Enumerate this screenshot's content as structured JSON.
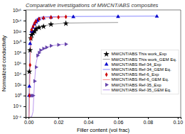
{
  "chart_data": {
    "type": "line",
    "title": "Comparative investigations of MWCNT/ABS composites",
    "x_label": "Filler content (vol frac)",
    "y_label": "Normalized conductivity",
    "log": "y",
    "grid": false,
    "legend": "right",
    "xlim": [
      -0.002,
      0.102
    ],
    "ylim": [
      0.0001,
      1e+16
    ],
    "xticks": [
      {
        "value": 0,
        "label": "0.00"
      },
      {
        "value": 0.02,
        "label": "0.02"
      },
      {
        "value": 0.04,
        "label": "0.04"
      },
      {
        "value": 0.06,
        "label": "0.06"
      },
      {
        "value": 0.08,
        "label": "0.08"
      },
      {
        "value": 0.1,
        "label": "0.10"
      }
    ],
    "yticks": [
      {
        "value": 0.0001,
        "label": "10⁻⁴"
      },
      {
        "value": 0.01,
        "label": "10⁻²"
      },
      {
        "value": 1,
        "label": "10⁰"
      },
      {
        "value": 100,
        "label": "10²"
      },
      {
        "value": 10000.0,
        "label": "10⁴"
      },
      {
        "value": 1000000.0,
        "label": "10⁶"
      },
      {
        "value": 100000000.0,
        "label": "10⁸"
      },
      {
        "value": 10000000000.0,
        "label": "10¹⁰"
      },
      {
        "value": 1000000000000.0,
        "label": "10¹²"
      },
      {
        "value": 100000000000000.0,
        "label": "10¹⁴"
      },
      {
        "value": 1e+16,
        "label": "10¹⁶"
      }
    ],
    "series": [
      {
        "name": "MWCNT/ABS This work_Exp",
        "type": "scatter",
        "marker": "star",
        "color": "#000000",
        "x": [
          0.0005,
          0.001,
          0.0015,
          0.002,
          0.003,
          0.004,
          0.005,
          0.007,
          0.01,
          0.015,
          0.025
        ],
        "values": [
          30000.0,
          300000000.0,
          50000000000.0,
          200000000000.0,
          500000000000.0,
          1000000000000.0,
          3000000000000.0,
          5000000000000.0,
          8000000000000.0,
          20000000000000.0,
          30000000000000.0
        ]
      },
      {
        "name": "MWCNT/ABS This work_GEM Eq.",
        "type": "line",
        "line_style": "solid",
        "color": "#999999",
        "x": [
          0.0002,
          0.0005,
          0.001,
          0.002,
          0.003,
          0.004,
          0.005,
          0.007,
          0.01,
          0.015,
          0.025,
          0.04,
          0.06
        ],
        "values": [
          0.0001,
          1000.0,
          500000000.0,
          200000000000.0,
          600000000000.0,
          1500000000000.0,
          3000000000000.0,
          6000000000000.0,
          10000000000000.0,
          20000000000000.0,
          35000000000000.0,
          40000000000000.0,
          45000000000000.0
        ]
      },
      {
        "name": "MWCNT/ABS Ref-34_Exp",
        "type": "scatter",
        "marker": "triangle-up",
        "color": "#0000cc",
        "x": [
          0.0003,
          0.0005,
          0.001,
          0.002,
          0.003,
          0.004,
          0.005,
          0.006,
          0.007,
          0.01,
          0.015,
          0.03,
          0.06,
          0.086
        ],
        "values": [
          1.0,
          50.0,
          5000000000.0,
          1000000000000.0,
          5000000000000.0,
          20000000000000.0,
          50000000000000.0,
          100000000000000.0,
          200000000000000.0,
          300000000000000.0,
          400000000000000.0,
          500000000000000.0,
          550000000000000.0,
          600000000000000.0
        ]
      },
      {
        "name": "MWCNT/ABS Ref-34_GEM Eq.",
        "type": "line",
        "line_style": "solid",
        "color": "#8888ff",
        "x": [
          0.0002,
          0.0004,
          0.0007,
          0.001,
          0.0015,
          0.002,
          0.003,
          0.004,
          0.005,
          0.007,
          0.01,
          0.015,
          0.03,
          0.06,
          0.086
        ],
        "values": [
          0.0001,
          0.01,
          10000.0,
          1000000000.0,
          500000000000.0,
          2000000000000.0,
          20000000000000.0,
          80000000000000.0,
          200000000000000.0,
          400000000000000.0,
          500000000000000.0,
          550000000000000.0,
          600000000000000.0,
          650000000000000.0,
          700000000000000.0
        ]
      },
      {
        "name": "MWCNT/ABS Ref-6_Exp",
        "type": "scatter",
        "marker": "diamond",
        "color": "#cc0000",
        "x": [
          0.0006,
          0.001,
          0.0015,
          0.002,
          0.003,
          0.004,
          0.005,
          0.007,
          0.01,
          0.015,
          0.02,
          0.025
        ],
        "values": [
          1.0,
          500000.0,
          50000000000.0,
          2000000000000.0,
          8000000000000.0,
          30000000000000.0,
          80000000000000.0,
          200000000000000.0,
          300000000000000.0,
          400000000000000.0,
          450000000000000.0,
          500000000000000.0
        ]
      },
      {
        "name": "MWCNT/ABS Ref-6_GEM Eq.",
        "type": "line",
        "line_style": "solid",
        "color": "#ff8888",
        "x": [
          0.0003,
          0.0006,
          0.001,
          0.0015,
          0.002,
          0.003,
          0.004,
          0.005,
          0.007,
          0.01,
          0.015,
          0.02,
          0.025
        ],
        "values": [
          0.0001,
          0.1,
          500000.0,
          20000000000.0,
          1000000000000.0,
          10000000000000.0,
          50000000000000.0,
          100000000000000.0,
          250000000000000.0,
          350000000000000.0,
          400000000000000.0,
          450000000000000.0,
          500000000000000.0
        ]
      },
      {
        "name": "MWCNT/ABS Ref-35_Exp",
        "type": "scatter",
        "marker": "triangle-right",
        "color": "#6644aa",
        "x": [
          0.002,
          0.003,
          0.004,
          0.005,
          0.006,
          0.007,
          0.008,
          0.01,
          0.012,
          0.015,
          0.02,
          0.025
        ],
        "values": [
          1.0,
          1.0,
          500.0,
          200000.0,
          30000000.0,
          100000000.0,
          300000000.0,
          600000000.0,
          1000000000.0,
          2000000000.0,
          3000000000.0,
          4000000000.0
        ]
      },
      {
        "name": "MWCNT/ABS Ref-35_GEM Eq.",
        "type": "line",
        "line_style": "solid",
        "color": "#bb99ee",
        "x": [
          0.001,
          0.002,
          0.003,
          0.0035,
          0.004,
          0.005,
          0.006,
          0.007,
          0.008,
          0.01,
          0.012,
          0.015,
          0.02,
          0.025
        ],
        "values": [
          0.0001,
          0.0001,
          0.001,
          1.0,
          500.0,
          1000000.0,
          20000000.0,
          80000000.0,
          300000000.0,
          700000000.0,
          1000000000.0,
          2000000000.0,
          3000000000.0,
          4500000000.0
        ]
      }
    ]
  }
}
